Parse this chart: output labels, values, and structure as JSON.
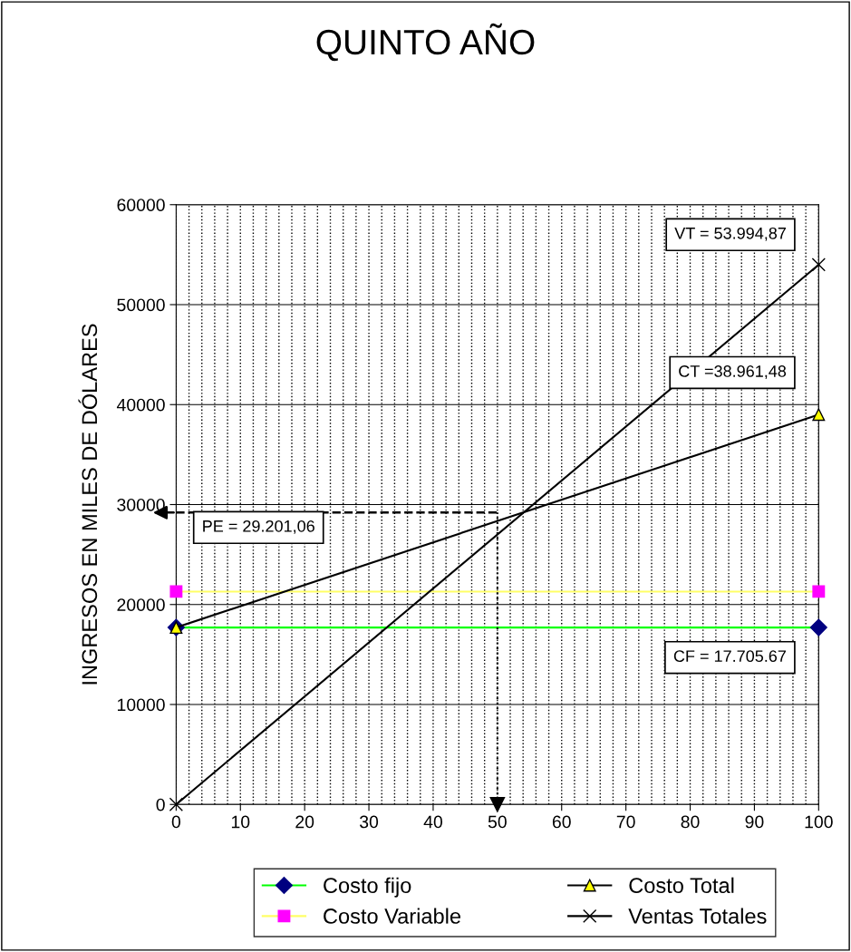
{
  "chart_data": {
    "type": "line",
    "title": "QUINTO AÑO",
    "ylabel": "INGRESOS EN MILES DE DÓLARES",
    "x": [
      0,
      100
    ],
    "series": [
      {
        "name": "Costo fijo",
        "color": "#00ff00",
        "marker": "diamond",
        "colors": [
          "#000080",
          "#000080"
        ],
        "values": [
          17700,
          17700
        ]
      },
      {
        "name": "Costo Variable",
        "color": "#ffff66",
        "marker": "square",
        "colors": [
          "#ff00ff",
          "#ff00ff"
        ],
        "values": [
          21300,
          21300
        ]
      },
      {
        "name": "Costo Total",
        "color": "#000000",
        "marker": "triangle",
        "colors": [
          "#ffff00",
          "#ffff00"
        ],
        "values": [
          17700,
          39000
        ]
      },
      {
        "name": "Ventas Totales",
        "color": "#000000",
        "marker": "cross",
        "colors": [
          "#000000",
          "#000000"
        ],
        "values": [
          0,
          54000
        ]
      }
    ],
    "annotations": [
      "VT = 53.994,87",
      "CT =38.961,48",
      "CF = 17.705.67"
    ],
    "ref_lines": [
      {
        "axis": "y",
        "value": 29201.06,
        "label": "PE = 29.201,06",
        "line_style": "dashed",
        "color": "#000000"
      },
      {
        "axis": "x",
        "value": 50,
        "label": null,
        "line_style": "dotted",
        "color": "#000000"
      }
    ],
    "xlim": [
      0,
      100
    ],
    "xticks": [
      0,
      10,
      20,
      30,
      40,
      50,
      60,
      70,
      80,
      90,
      100
    ],
    "ylim": [
      0,
      60000
    ],
    "yticks": [
      0,
      10000,
      20000,
      30000,
      40000,
      50000,
      60000
    ],
    "grid": true,
    "legend": "bottom",
    "line_style": "solid"
  }
}
